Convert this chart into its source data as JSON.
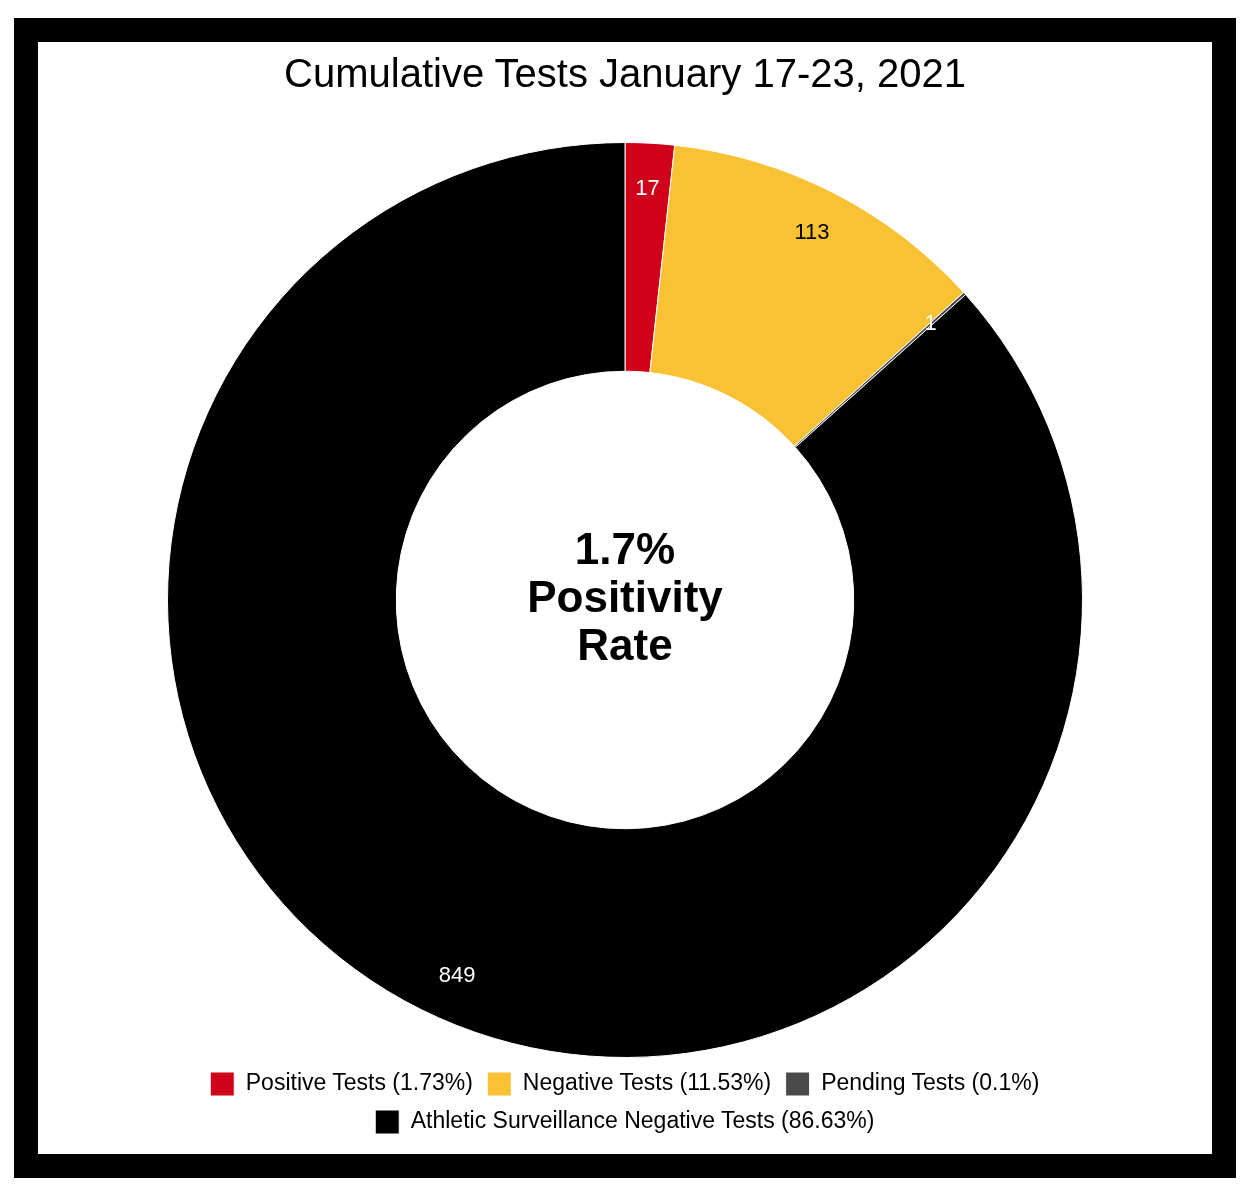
{
  "chart_data": {
    "type": "donut",
    "title": "Cumulative Tests January 17-23, 2021",
    "categories": [
      "Positive Tests (1.73%)",
      "Negative Tests (11.53%)",
      "Pending Tests (0.1%)",
      "Athletic Surveillance Negative Tests (86.63%)"
    ],
    "values": [
      17,
      113,
      1,
      849
    ],
    "colors": [
      "#d0011b",
      "#f9c235",
      "#4a4a4a",
      "#000000"
    ],
    "data_labels": true,
    "legend": "bottom",
    "annotations": [
      "1.7% Positivity Rate"
    ]
  }
}
